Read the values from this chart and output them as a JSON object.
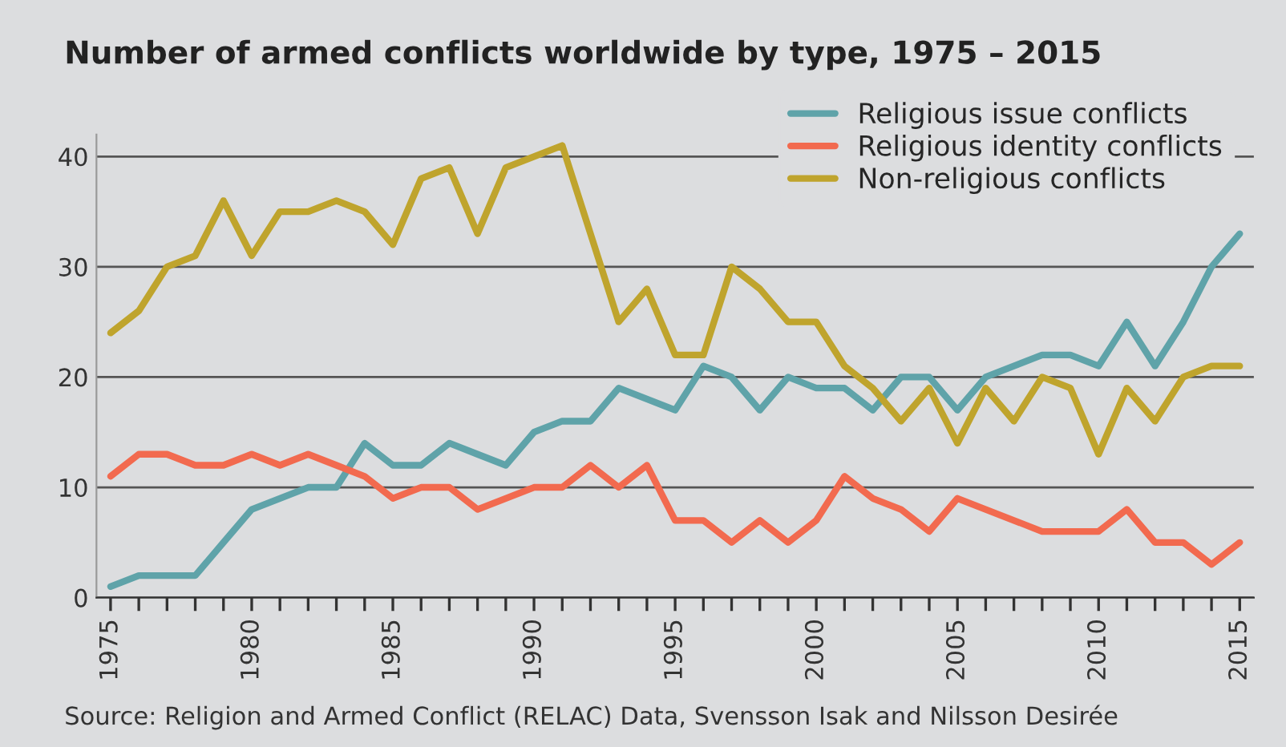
{
  "chart_data": {
    "type": "line",
    "title": "Number of armed conflicts worldwide by type, 1975 – 2015",
    "annotations": [
      "Source: Religion and Armed Conflict (RELAC) Data, Svensson Isak and Nilsson Desirée"
    ],
    "x": [
      1975,
      1976,
      1977,
      1978,
      1979,
      1980,
      1981,
      1982,
      1983,
      1984,
      1985,
      1986,
      1987,
      1988,
      1989,
      1990,
      1991,
      1992,
      1993,
      1994,
      1995,
      1996,
      1997,
      1998,
      1999,
      2000,
      2001,
      2002,
      2003,
      2004,
      2005,
      2006,
      2007,
      2008,
      2009,
      2010,
      2011,
      2012,
      2013,
      2014,
      2015
    ],
    "series": [
      {
        "name": "Religious issue conflicts",
        "color": "#5fa3a9",
        "values": [
          1,
          2,
          2,
          2,
          5,
          8,
          9,
          10,
          10,
          14,
          12,
          12,
          14,
          13,
          12,
          15,
          16,
          16,
          19,
          18,
          17,
          21,
          20,
          17,
          20,
          19,
          19,
          17,
          20,
          20,
          17,
          20,
          21,
          22,
          22,
          21,
          25,
          21,
          25,
          30,
          33
        ]
      },
      {
        "name": "Religious identity conflicts",
        "color": "#f26a4f",
        "values": [
          11,
          13,
          13,
          12,
          12,
          13,
          12,
          13,
          12,
          11,
          9,
          10,
          10,
          8,
          9,
          10,
          10,
          12,
          10,
          12,
          7,
          7,
          5,
          7,
          5,
          7,
          11,
          9,
          8,
          6,
          9,
          8,
          7,
          6,
          6,
          6,
          8,
          5,
          5,
          3,
          5
        ]
      },
      {
        "name": "Non-religious conflicts",
        "color": "#bfa42d",
        "values": [
          24,
          26,
          30,
          31,
          36,
          31,
          35,
          35,
          36,
          35,
          32,
          38,
          39,
          33,
          39,
          40,
          41,
          33,
          25,
          28,
          22,
          22,
          30,
          28,
          25,
          25,
          21,
          19,
          16,
          19,
          14,
          19,
          16,
          20,
          19,
          13,
          19,
          16,
          20,
          21,
          21
        ]
      }
    ],
    "xlim": [
      1974.5,
      2015.5
    ],
    "xticks": [
      1975,
      {
        "value": 1976,
        "label": null
      },
      {
        "value": 1977,
        "label": null
      },
      {
        "value": 1978,
        "label": null
      },
      {
        "value": 1979,
        "label": null
      },
      1980,
      {
        "value": 1981,
        "label": null
      },
      {
        "value": 1982,
        "label": null
      },
      {
        "value": 1983,
        "label": null
      },
      {
        "value": 1984,
        "label": null
      },
      1985,
      {
        "value": 1986,
        "label": null
      },
      {
        "value": 1987,
        "label": null
      },
      {
        "value": 1988,
        "label": null
      },
      {
        "value": 1989,
        "label": null
      },
      1990,
      {
        "value": 1991,
        "label": null
      },
      {
        "value": 1992,
        "label": null
      },
      {
        "value": 1993,
        "label": null
      },
      {
        "value": 1994,
        "label": null
      },
      1995,
      {
        "value": 1996,
        "label": null
      },
      {
        "value": 1997,
        "label": null
      },
      {
        "value": 1998,
        "label": null
      },
      {
        "value": 1999,
        "label": null
      },
      2000,
      {
        "value": 2001,
        "label": null
      },
      {
        "value": 2002,
        "label": null
      },
      {
        "value": 2003,
        "label": null
      },
      {
        "value": 2004,
        "label": null
      },
      2005,
      {
        "value": 2006,
        "label": null
      },
      {
        "value": 2007,
        "label": null
      },
      {
        "value": 2008,
        "label": null
      },
      {
        "value": 2009,
        "label": null
      },
      2010,
      {
        "value": 2011,
        "label": null
      },
      {
        "value": 2012,
        "label": null
      },
      {
        "value": 2013,
        "label": null
      },
      {
        "value": 2014,
        "label": null
      },
      2015
    ],
    "ylim": [
      0,
      42
    ],
    "yticks": [
      0,
      10,
      20,
      30,
      40
    ],
    "grid": "y",
    "legend": "top right",
    "marker": "none",
    "line_style": "solid"
  }
}
